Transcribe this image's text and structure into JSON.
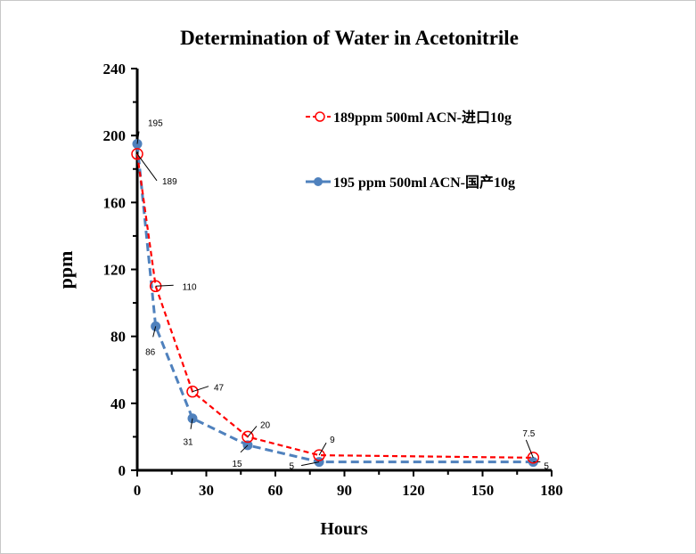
{
  "chart_data": {
    "type": "line",
    "title": "Determination of Water in Acetonitrile",
    "xlabel": "Hours",
    "ylabel": "ppm",
    "xlim": [
      0,
      180
    ],
    "ylim": [
      0,
      240
    ],
    "xticks": [
      0,
      30,
      60,
      90,
      120,
      150,
      180
    ],
    "yticks": [
      0,
      40,
      80,
      120,
      160,
      200,
      240
    ],
    "grid": false,
    "legend_position": "top-right",
    "series": [
      {
        "name": "189ppm  500ml ACN-进口10g",
        "color": "#ff0000",
        "marker": "open-circle",
        "line": "dashed",
        "x": [
          0,
          8,
          24,
          48,
          79,
          172
        ],
        "y": [
          189,
          110,
          47,
          20,
          9,
          7.5
        ],
        "labels": [
          "189",
          "110",
          "47",
          "20",
          "9",
          "7.5"
        ]
      },
      {
        "name": "195 ppm 500ml ACN-国产10g",
        "color": "#4f81bd",
        "marker": "filled-circle",
        "line": "dashed",
        "x": [
          0,
          8,
          24,
          48,
          79,
          172
        ],
        "y": [
          195,
          86,
          31,
          15,
          5,
          5
        ],
        "labels": [
          "195",
          "86",
          "31",
          "15",
          "5",
          "5"
        ]
      }
    ]
  }
}
